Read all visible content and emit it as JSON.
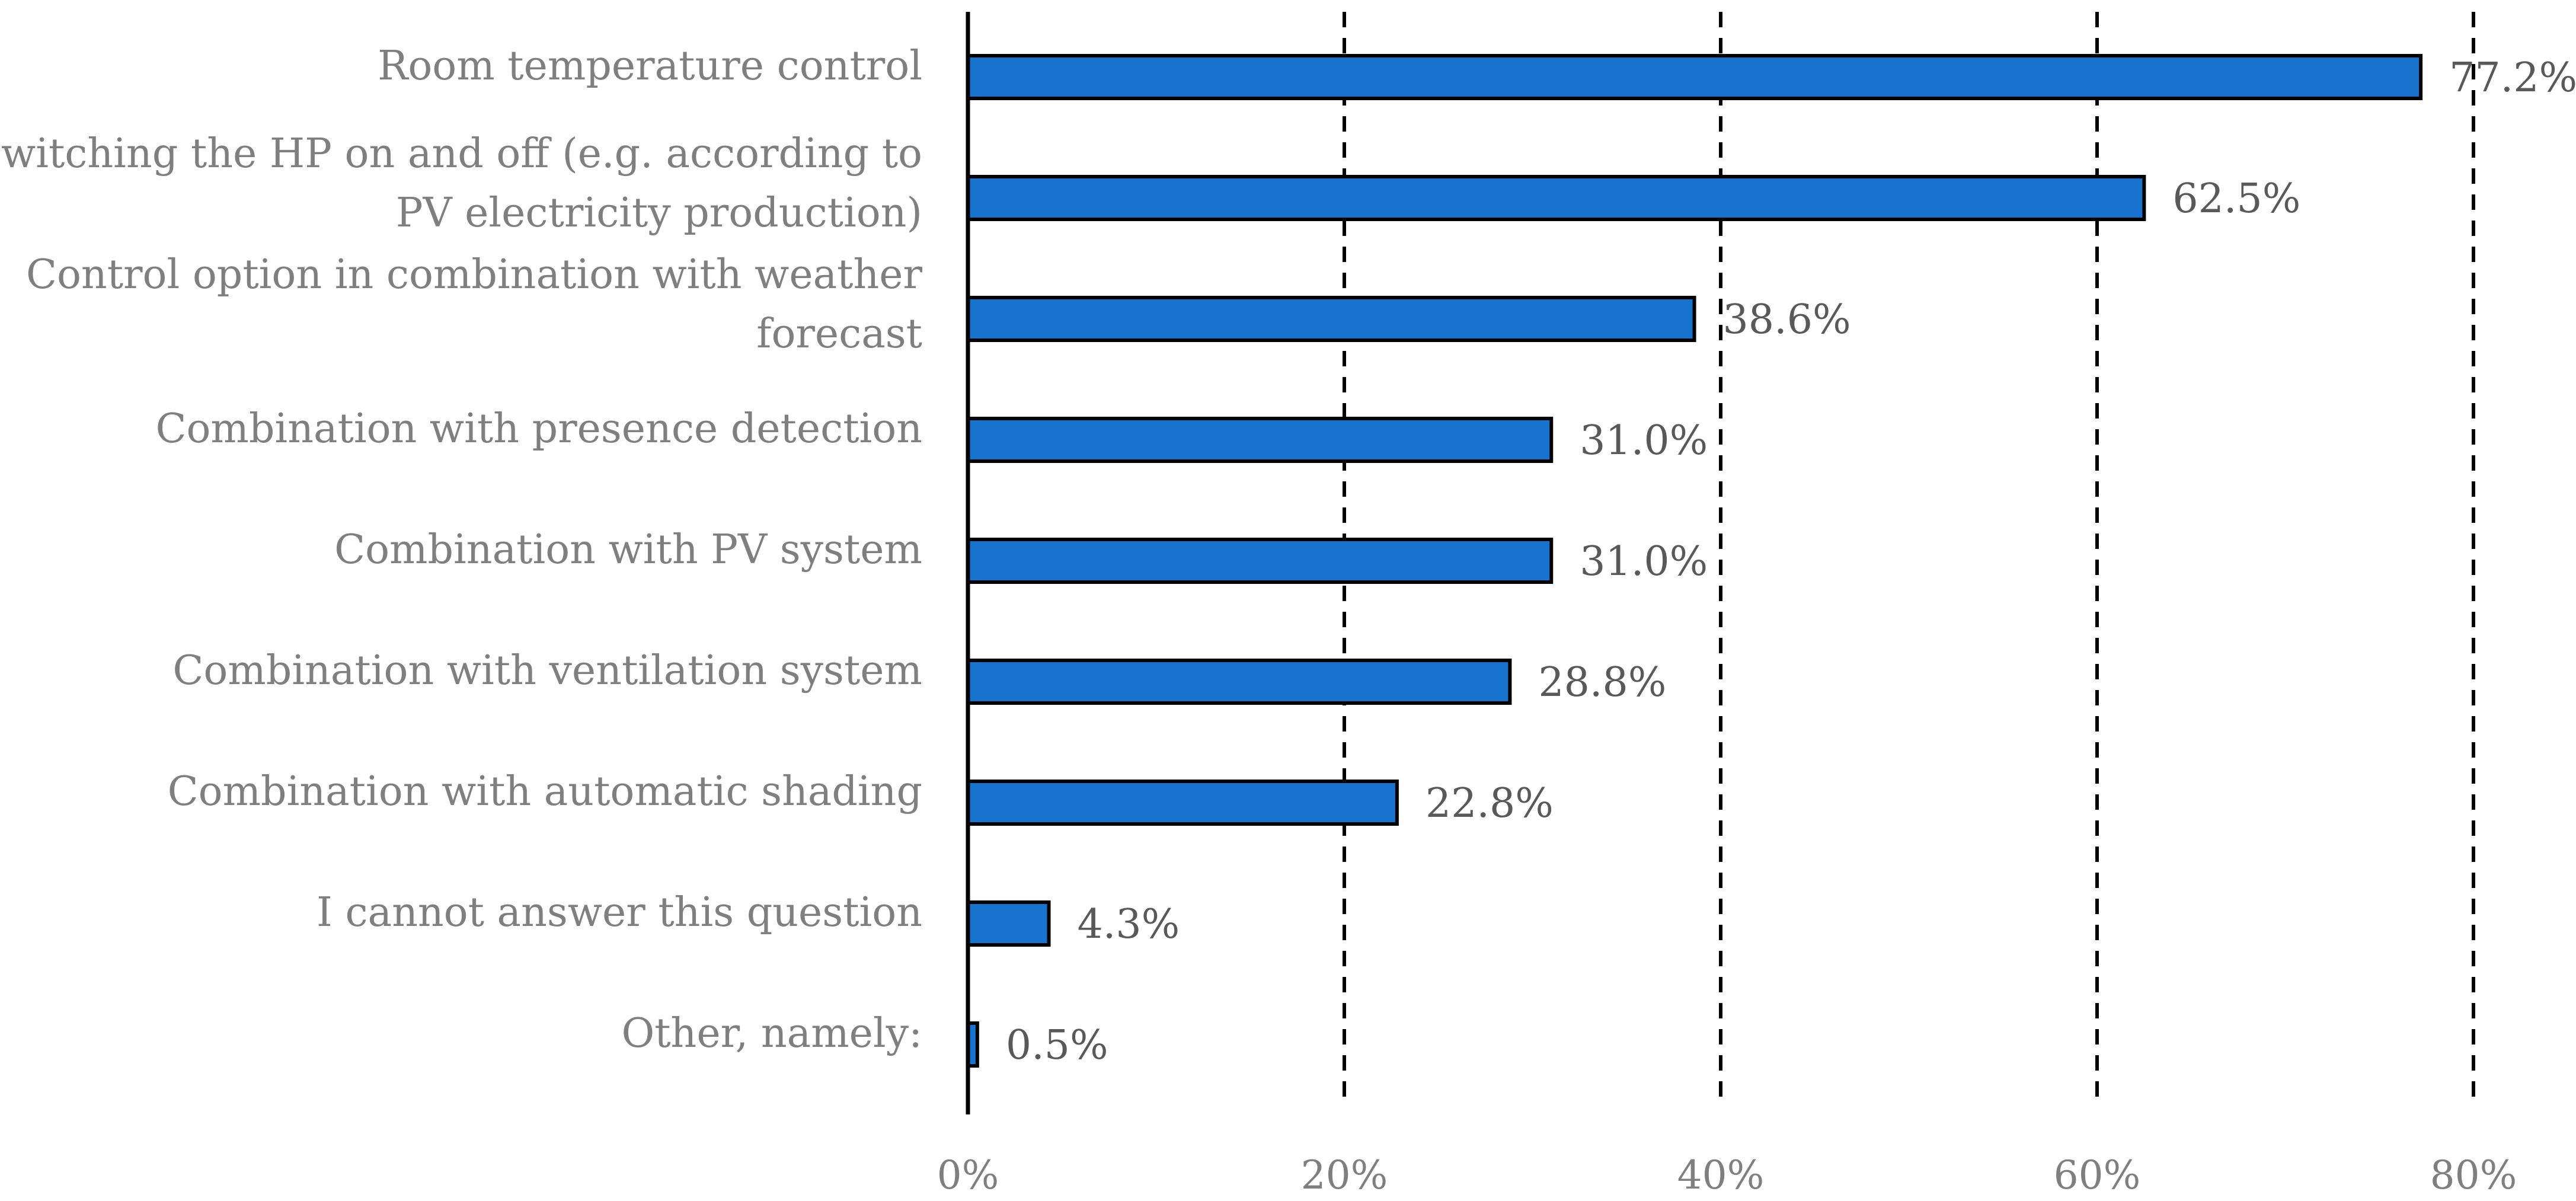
{
  "chart_data": {
    "type": "bar",
    "orientation": "horizontal",
    "title": "",
    "xlabel": "",
    "ylabel": "",
    "xlim": [
      0,
      80
    ],
    "grid": true,
    "bar_color": "#1873cf",
    "bar_outline": "#000000",
    "x_ticks": [
      "0%",
      "20%",
      "40%",
      "60%",
      "80%"
    ],
    "x_tick_values": [
      0,
      20,
      40,
      60,
      80
    ],
    "categories": [
      [
        "Room temperature control"
      ],
      [
        "Switching the HP on and off (e.g. according to",
        "PV electricity production)"
      ],
      [
        "Control option in combination with weather",
        "forecast"
      ],
      [
        "Combination with presence detection"
      ],
      [
        "Combination with PV system"
      ],
      [
        "Combination with ventilation system"
      ],
      [
        "Combination with automatic shading"
      ],
      [
        "I cannot answer this question"
      ],
      [
        "Other, namely:"
      ]
    ],
    "values": [
      77.2,
      62.5,
      38.6,
      31.0,
      31.0,
      28.8,
      22.8,
      4.3,
      0.5
    ],
    "value_labels": [
      "77.2%",
      "62.5%",
      "38.6%",
      "31.0%",
      "31.0%",
      "28.8%",
      "22.8%",
      "4.3%",
      "0.5%"
    ]
  }
}
